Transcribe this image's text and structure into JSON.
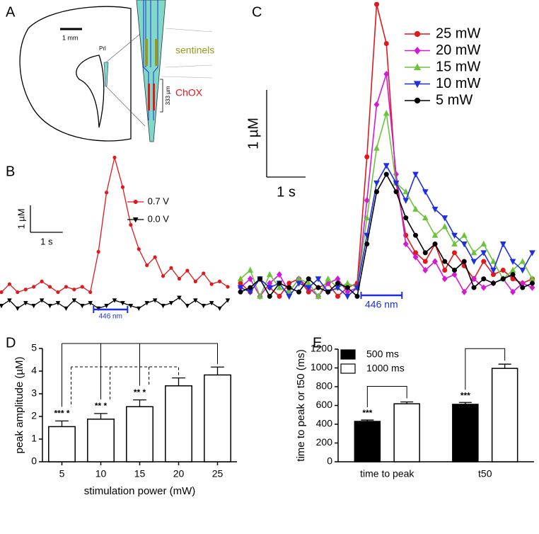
{
  "panel_labels": [
    "A",
    "B",
    "C",
    "D",
    "E"
  ],
  "diagram": {
    "scale_bar": "1 mm",
    "region": "Prl",
    "sentinels": "sentinels",
    "chox": "ChOX",
    "spacing": "333 µm"
  },
  "chart_data": [
    {
      "type": "line",
      "xlim": [
        0,
        7
      ],
      "ylim": [
        -0.5,
        5.6
      ],
      "x": [
        0,
        0.25,
        0.5,
        0.75,
        1,
        1.25,
        1.5,
        1.75,
        2,
        2.25,
        2.5,
        2.75,
        3,
        3.25,
        3.5,
        3.75,
        4,
        4.25,
        4.5,
        4.75,
        5,
        5.25,
        5.5,
        5.75,
        6,
        6.25,
        6.5,
        6.75,
        7
      ],
      "series": [
        {
          "name": "0.7 V",
          "color": "#e0191c",
          "marker": "circle",
          "values": [
            0.3,
            0.6,
            0.3,
            0.4,
            0.5,
            0.7,
            0.5,
            0.3,
            0.5,
            0.4,
            0.5,
            0.3,
            1.8,
            4.0,
            5.3,
            4.2,
            2.8,
            1.9,
            1.3,
            1.6,
            0.9,
            1.2,
            0.8,
            1.1,
            0.7,
            1.0,
            0.6,
            0.7,
            0.5
          ]
        },
        {
          "name": "0.0 V",
          "color": "#000000",
          "marker": "down",
          "values": [
            -0.2,
            0.0,
            -0.3,
            -0.1,
            -0.2,
            0.0,
            -0.2,
            -0.1,
            -0.3,
            0.0,
            -0.2,
            -0.1,
            -0.3,
            -0.2,
            0.0,
            -0.1,
            -0.2,
            -0.3,
            -0.1,
            0.0,
            -0.2,
            -0.1,
            0.1,
            -0.2,
            0.0,
            -0.2,
            -0.1,
            -0.3,
            0.0
          ]
        }
      ],
      "scale_bar": {
        "y": 1,
        "y_label": "1 µM",
        "x": 1,
        "x_label": "1 s"
      },
      "stimulus": {
        "start": 2.85,
        "end": 3.9,
        "label": "446 nm"
      }
    },
    {
      "type": "line",
      "xlim": [
        0,
        7.6
      ],
      "ylim": [
        -0.3,
        3.3
      ],
      "x": [
        0,
        0.25,
        0.5,
        0.75,
        1,
        1.25,
        1.5,
        1.75,
        2,
        2.25,
        2.5,
        2.75,
        3,
        3.25,
        3.5,
        3.75,
        4,
        4.25,
        4.5,
        4.75,
        5,
        5.25,
        5.5,
        5.75,
        6,
        6.25,
        6.5,
        6.75,
        7,
        7.25,
        7.5
      ],
      "series": [
        {
          "name": "25 mW",
          "color": "#e0191c",
          "marker": "circle",
          "values": [
            0.05,
            -0.05,
            0.1,
            0.0,
            -0.1,
            0.05,
            0.1,
            -0.05,
            0.0,
            0.05,
            -0.1,
            0.0,
            0.05,
            1.5,
            3.25,
            2.8,
            1.2,
            0.6,
            0.4,
            0.3,
            0.5,
            0.2,
            0.4,
            0.25,
            0.1,
            0.3,
            0.15,
            0.2,
            0.1,
            0.05,
            0.1
          ]
        },
        {
          "name": "20 mW",
          "color": "#d21ad2",
          "marker": "diamond",
          "values": [
            0.0,
            0.1,
            -0.1,
            0.05,
            0.15,
            -0.05,
            0.1,
            0.0,
            -0.1,
            0.05,
            0.1,
            -0.05,
            0.0,
            1.0,
            2.1,
            2.45,
            1.3,
            0.5,
            0.35,
            0.2,
            0.3,
            0.1,
            0.15,
            -0.05,
            0.1,
            0.0,
            0.05,
            0.1,
            -0.05,
            0.05,
            0.0
          ]
        },
        {
          "name": "15 mW",
          "color": "#6cc43c",
          "marker": "up",
          "values": [
            0.1,
            0.2,
            -0.1,
            0.15,
            0.0,
            -0.05,
            0.1,
            0.05,
            -0.1,
            0.1,
            0.0,
            0.05,
            0.0,
            0.8,
            1.6,
            2.0,
            1.2,
            1.1,
            0.9,
            0.8,
            0.6,
            0.7,
            0.5,
            0.6,
            0.4,
            0.5,
            0.3,
            0.1,
            0.2,
            0.3,
            0.1
          ]
        },
        {
          "name": "10 mW",
          "color": "#1f2ee0",
          "marker": "down",
          "values": [
            0.0,
            -0.05,
            0.1,
            0.0,
            0.05,
            -0.1,
            0.05,
            0.0,
            0.1,
            -0.05,
            0.0,
            -0.1,
            0.0,
            0.6,
            1.2,
            1.4,
            1.2,
            1.0,
            1.3,
            1.1,
            0.9,
            0.8,
            0.6,
            0.5,
            0.3,
            0.4,
            0.2,
            0.5,
            0.3,
            0.2,
            0.4
          ]
        },
        {
          "name": "5 mW",
          "color": "#000000",
          "marker": "circle",
          "values": [
            -0.05,
            0.0,
            0.1,
            -0.1,
            0.05,
            0.0,
            -0.05,
            0.1,
            0.0,
            -0.05,
            0.05,
            0.0,
            -0.1,
            0.5,
            1.1,
            1.3,
            1.1,
            0.8,
            0.6,
            0.4,
            0.5,
            0.3,
            0.2,
            0.3,
            0.0,
            0.1,
            0.05,
            0.1,
            0.15,
            0.0,
            0.05
          ]
        }
      ],
      "scale_bar": {
        "y": 1,
        "y_label": "1 µM",
        "x": 1,
        "x_label": "1 s"
      },
      "stimulus": {
        "start": 3.1,
        "end": 4.15,
        "label": "446 nm"
      }
    },
    {
      "type": "bar",
      "x_label": "stimulation power (mW)",
      "y_label": "peak amplitude (µM)",
      "categories": [
        "5",
        "10",
        "15",
        "20",
        "25"
      ],
      "values": [
        1.55,
        1.88,
        2.43,
        3.35,
        3.83
      ],
      "errors": [
        0.25,
        0.25,
        0.3,
        0.35,
        0.35
      ],
      "annotations": [
        "*** *",
        "** *",
        "** *"
      ],
      "color": "#ffffff",
      "ylim": [
        0,
        5
      ],
      "yticks": [
        0,
        1,
        2,
        3,
        4,
        5
      ]
    },
    {
      "type": "bar",
      "y_label": "time to peak or t50 (ms)",
      "categories": [
        "time to peak",
        "t50"
      ],
      "series": [
        {
          "name": "500 ms",
          "color": "#000000",
          "values": [
            430,
            612
          ],
          "errors": [
            15,
            20
          ]
        },
        {
          "name": "1000 ms",
          "color": "#ffffff",
          "values": [
            618,
            995
          ],
          "errors": [
            20,
            45
          ]
        }
      ],
      "annotations": [
        "***",
        "***"
      ],
      "ylim": [
        0,
        1200
      ],
      "yticks": [
        0,
        200,
        400,
        600,
        800,
        1000,
        1200
      ]
    }
  ]
}
